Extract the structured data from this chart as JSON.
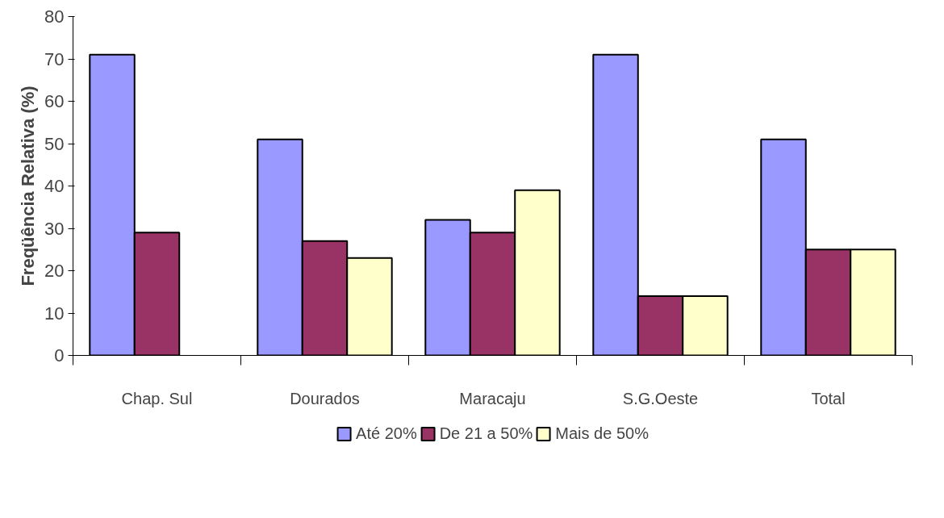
{
  "chart_data": {
    "type": "bar",
    "ylabel": "Freqüência Relativa (%)",
    "categories": [
      "Chap. Sul",
      "Dourados",
      "Maracaju",
      "S.G.Oeste",
      "Total"
    ],
    "series": [
      {
        "name": "Até 20%",
        "color": "#9999ff",
        "values": [
          71,
          51,
          32,
          71,
          51
        ]
      },
      {
        "name": "De 21 a 50%",
        "color": "#993366",
        "values": [
          29,
          27,
          29,
          14,
          25
        ]
      },
      {
        "name": "Mais de 50%",
        "color": "#ffffcc",
        "values": [
          null,
          23,
          39,
          14,
          25
        ]
      }
    ],
    "ylim": [
      0,
      80
    ],
    "yticks": [
      0,
      10,
      20,
      30,
      40,
      50,
      60,
      70,
      80
    ],
    "grid": false,
    "legend": "bottom"
  }
}
